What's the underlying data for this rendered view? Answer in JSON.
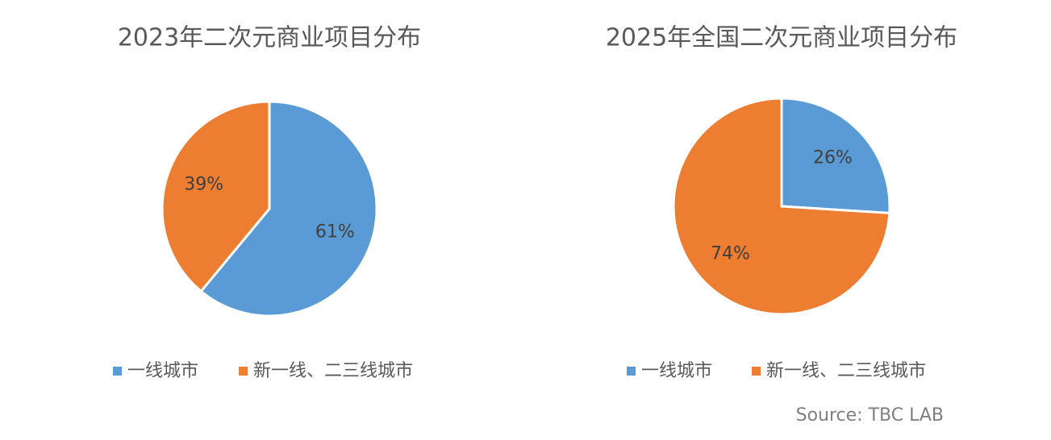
{
  "chart_data": [
    {
      "type": "pie",
      "title": "2023年二次元商业项目分布",
      "categories": [
        "一线城市",
        "新一线、二三线城市"
      ],
      "values": [
        61,
        39
      ],
      "value_labels": [
        "61%",
        "39%"
      ],
      "colors": [
        "#5b9bd5",
        "#ed7d31"
      ]
    },
    {
      "type": "pie",
      "title": "2025年全国二次元商业项目分布",
      "categories": [
        "一线城市",
        "新一线、二三线城市"
      ],
      "values": [
        26,
        74
      ],
      "value_labels": [
        "26%",
        "74%"
      ],
      "colors": [
        "#5b9bd5",
        "#ed7d31"
      ]
    }
  ],
  "source": "Source: TBC LAB"
}
